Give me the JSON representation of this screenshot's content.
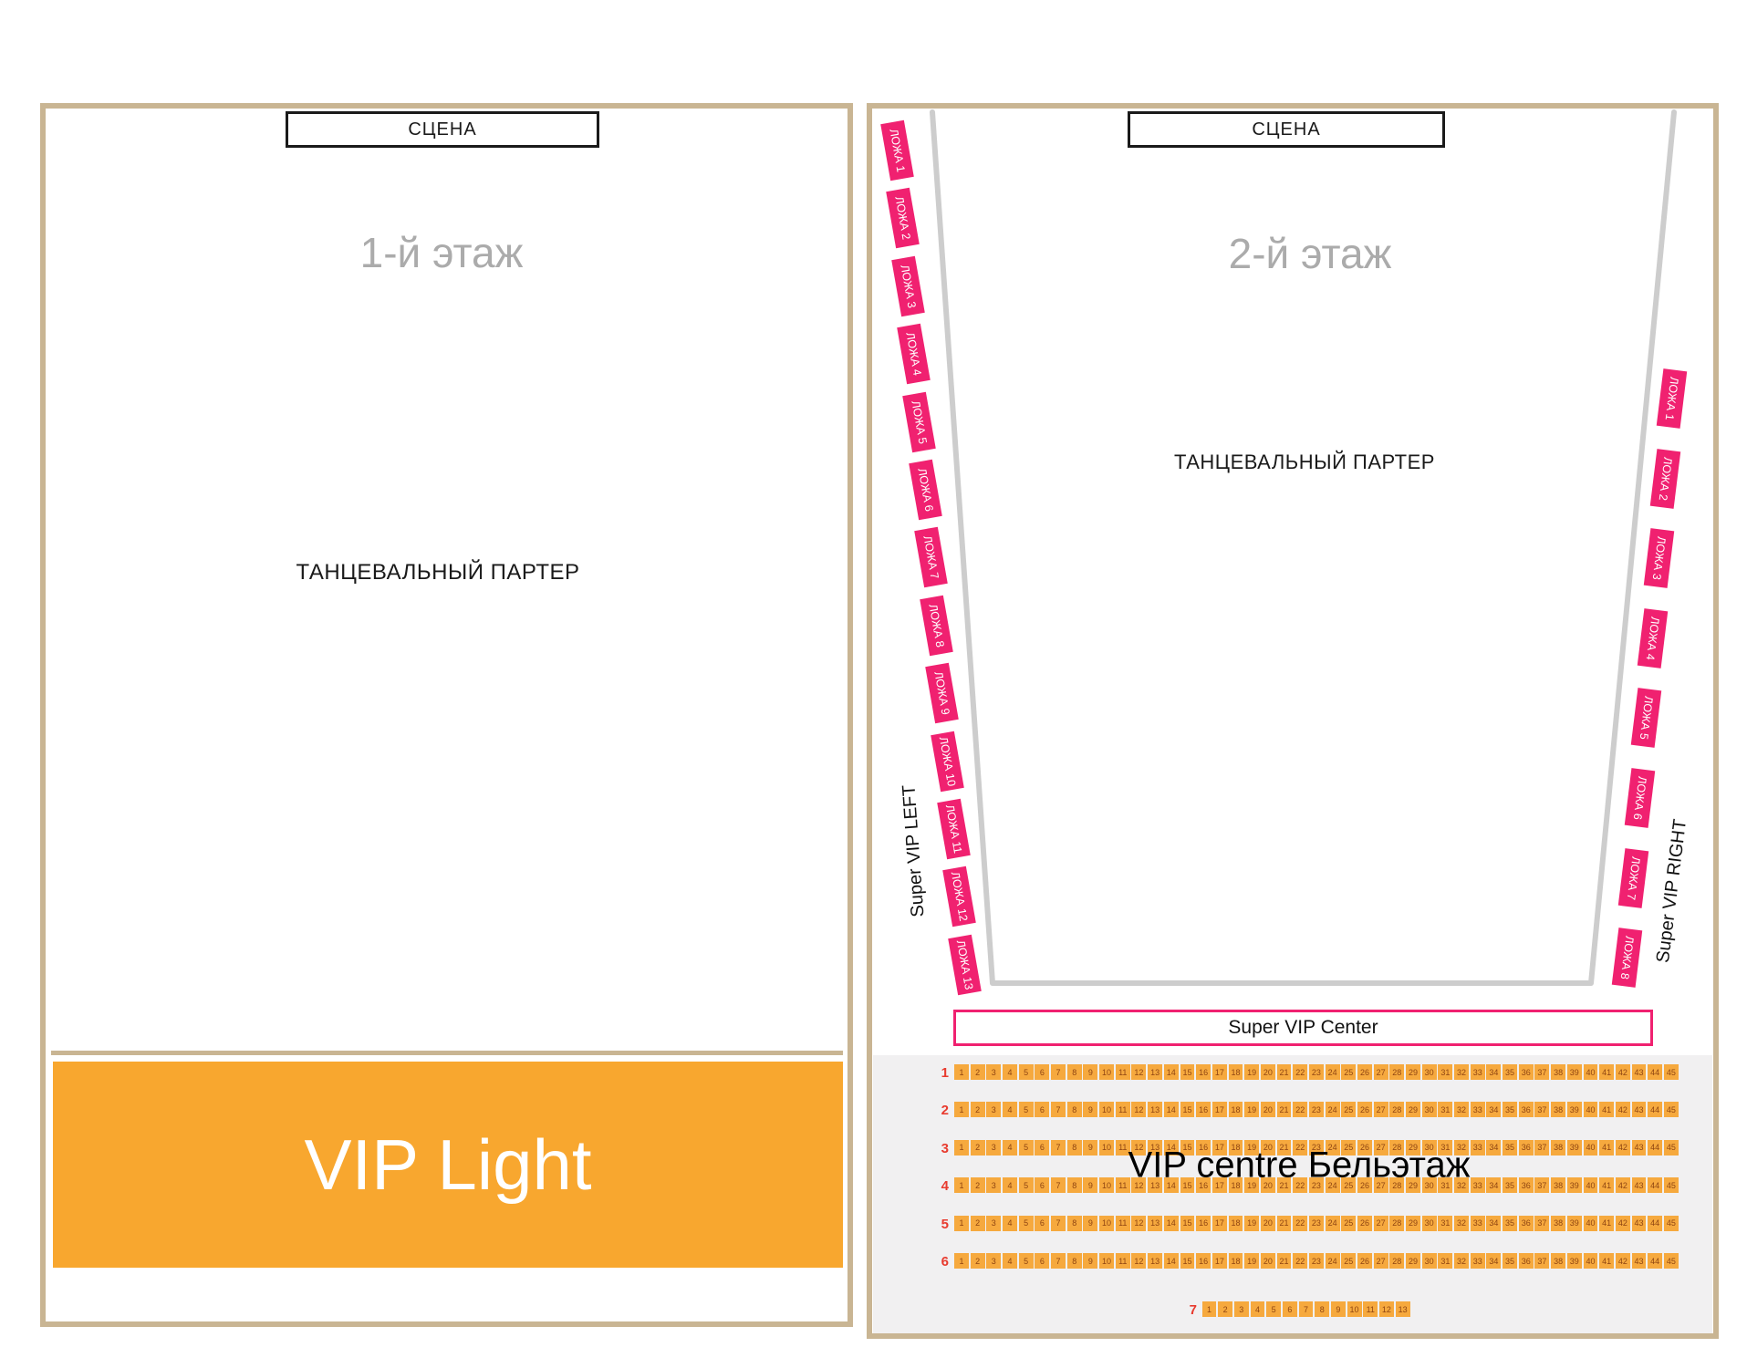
{
  "colors": {
    "frame_tan": "#C9B593",
    "pink": "#F02170",
    "orange_vip": "#F8A72F",
    "orange_seat": "#F6A93E",
    "seat_number": "#8F4512",
    "row_label_red": "#E83A2E",
    "wall_gray": "#CDCDCD",
    "title_gray": "#ABABAB",
    "seat_zone_bg": "#F1F0F1"
  },
  "floor1": {
    "stage": "СЦЕНА",
    "title": "1-й этаж",
    "area": "ТАНЦЕВАЛЬНЫЙ ПАРТЕР",
    "vip_light": "VIP Light"
  },
  "floor2": {
    "stage": "СЦЕНА",
    "title": "2-й этаж",
    "area": "ТАНЦЕВАЛЬНЫЙ ПАРТЕР",
    "super_vip_left": "Super VIP LEFT",
    "super_vip_right": "Super VIP RIGHT",
    "super_vip_center": "Super VIP Center",
    "left_boxes": [
      "ЛОЖА 1",
      "ЛОЖА 2",
      "ЛОЖА 3",
      "ЛОЖА 4",
      "ЛОЖА 5",
      "ЛОЖА 6",
      "ЛОЖА 7",
      "ЛОЖА 8",
      "ЛОЖА 9",
      "ЛОЖА 10",
      "ЛОЖА 11",
      "ЛОЖА 12",
      "ЛОЖА 13"
    ],
    "right_boxes": [
      "ЛОЖА 1",
      "ЛОЖА 2",
      "ЛОЖА 3",
      "ЛОЖА 4",
      "ЛОЖА 5",
      "ЛОЖА 6",
      "ЛОЖА 7",
      "ЛОЖА 8"
    ],
    "belle_etage": {
      "label": "VIP centre Бельэтаж",
      "rows": [
        {
          "row": "1",
          "seats": [
            1,
            2,
            3,
            4,
            5,
            6,
            7,
            8,
            9,
            10,
            11,
            12,
            13,
            14,
            15,
            16,
            17,
            18,
            19,
            20,
            21,
            22,
            23,
            24,
            25,
            26,
            27,
            28,
            29,
            30,
            31,
            32,
            33,
            34,
            35,
            36,
            37,
            38,
            39,
            40,
            41,
            42,
            43,
            44,
            45
          ]
        },
        {
          "row": "2",
          "seats": [
            1,
            2,
            3,
            4,
            5,
            6,
            7,
            8,
            9,
            10,
            11,
            12,
            13,
            14,
            15,
            16,
            17,
            18,
            19,
            20,
            21,
            22,
            23,
            24,
            25,
            26,
            27,
            28,
            29,
            30,
            31,
            32,
            33,
            34,
            35,
            36,
            37,
            38,
            39,
            40,
            41,
            42,
            43,
            44,
            45
          ]
        },
        {
          "row": "3",
          "seats": [
            1,
            2,
            3,
            4,
            5,
            6,
            7,
            8,
            9,
            10,
            11,
            12,
            13,
            14,
            15,
            16,
            17,
            18,
            19,
            20,
            21,
            22,
            23,
            24,
            25,
            26,
            27,
            28,
            29,
            30,
            31,
            32,
            33,
            34,
            35,
            36,
            37,
            38,
            39,
            40,
            41,
            42,
            43,
            44,
            45
          ]
        },
        {
          "row": "4",
          "seats": [
            1,
            2,
            3,
            4,
            5,
            6,
            7,
            8,
            9,
            10,
            11,
            12,
            13,
            14,
            15,
            16,
            17,
            18,
            19,
            20,
            21,
            22,
            23,
            24,
            25,
            26,
            27,
            28,
            29,
            30,
            31,
            32,
            33,
            34,
            35,
            36,
            37,
            38,
            39,
            40,
            41,
            42,
            43,
            44,
            45
          ]
        },
        {
          "row": "5",
          "seats": [
            1,
            2,
            3,
            4,
            5,
            6,
            7,
            8,
            9,
            10,
            11,
            12,
            13,
            14,
            15,
            16,
            17,
            18,
            19,
            20,
            21,
            22,
            23,
            24,
            25,
            26,
            27,
            28,
            29,
            30,
            31,
            32,
            33,
            34,
            35,
            36,
            37,
            38,
            39,
            40,
            41,
            42,
            43,
            44,
            45
          ]
        },
        {
          "row": "6",
          "seats": [
            1,
            2,
            3,
            4,
            5,
            6,
            7,
            8,
            9,
            10,
            11,
            12,
            13,
            14,
            15,
            16,
            17,
            18,
            19,
            20,
            21,
            22,
            23,
            24,
            25,
            26,
            27,
            28,
            29,
            30,
            31,
            32,
            33,
            34,
            35,
            36,
            37,
            38,
            39,
            40,
            41,
            42,
            43,
            44,
            45
          ]
        },
        {
          "row": "7",
          "seats": [
            1,
            2,
            3,
            4,
            5,
            6,
            7,
            8,
            9,
            10,
            11,
            12,
            13
          ]
        }
      ]
    }
  }
}
